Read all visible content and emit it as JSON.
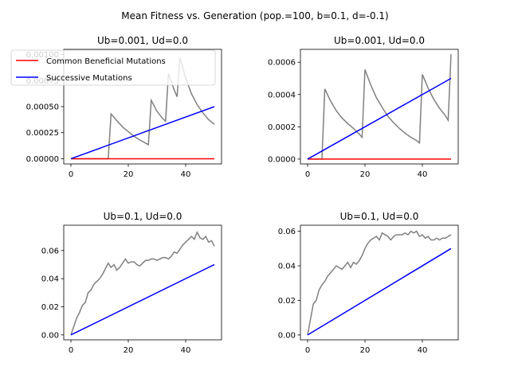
{
  "figure": {
    "suptitle": "Mean Fitness vs. Generation (pop.=100, b=0.1, d=-0.1)"
  },
  "chart_data": [
    {
      "type": "line",
      "title": "Ub=0.001, Ud=0.0",
      "xlim": [
        0,
        50
      ],
      "ylim": [
        -5e-05,
        0.00105
      ],
      "xticks": [
        0,
        20,
        40
      ],
      "xtick_labels": [
        "0",
        "20",
        "40"
      ],
      "yticks": [
        0,
        0.00025,
        0.0005,
        0.00075,
        0.001
      ],
      "ytick_labels": [
        "0.00000",
        "0.00025",
        "0.00050",
        "0.00075",
        "0.00100"
      ],
      "legend": {
        "placement": "upper left",
        "entries": [
          {
            "label": "Common Beneficial Mutations",
            "color": "#ff0000"
          },
          {
            "label": "Successive Mutations",
            "color": "#0000ff"
          }
        ]
      },
      "series": [
        {
          "name": "Common Beneficial Mutations",
          "color": "#ff0000",
          "x": [
            0,
            50
          ],
          "y": [
            0,
            0
          ]
        },
        {
          "name": "Successive Mutations",
          "color": "#0000ff",
          "x": [
            0,
            50
          ],
          "y": [
            0,
            0.0005
          ]
        },
        {
          "color": "#808080",
          "x": [
            0,
            13,
            14,
            16,
            18,
            20,
            22,
            24,
            26,
            27,
            28,
            30,
            32,
            33,
            34,
            36,
            37,
            38,
            40,
            42,
            44,
            46,
            48,
            50
          ],
          "y": [
            0,
            0,
            0.00043,
            0.000365,
            0.000305,
            0.00026,
            0.000215,
            0.00018,
            0.00015,
            0.000135,
            0.00056,
            0.000455,
            0.000385,
            0.00036,
            0.00082,
            0.00066,
            0.000595,
            0.00097,
            0.000775,
            0.000625,
            0.00052,
            0.00044,
            0.000375,
            0.00033
          ]
        }
      ]
    },
    {
      "type": "line",
      "title": "Ub=0.001, Ud=0.0",
      "xlim": [
        0,
        50
      ],
      "ylim": [
        -3e-05,
        0.00068
      ],
      "xticks": [
        0,
        20,
        40
      ],
      "xtick_labels": [
        "0",
        "20",
        "40"
      ],
      "yticks": [
        0,
        0.0002,
        0.0004,
        0.0006
      ],
      "ytick_labels": [
        "0.0000",
        "0.0002",
        "0.0004",
        "0.0006"
      ],
      "series": [
        {
          "name": "Common Beneficial Mutations",
          "color": "#ff0000",
          "x": [
            0,
            50
          ],
          "y": [
            0,
            0
          ]
        },
        {
          "name": "Successive Mutations",
          "color": "#0000ff",
          "x": [
            0,
            50
          ],
          "y": [
            0,
            0.0005
          ]
        },
        {
          "color": "#808080",
          "x": [
            0,
            5,
            6,
            8,
            10,
            12,
            14,
            16,
            18,
            19,
            20,
            22,
            24,
            26,
            28,
            30,
            32,
            34,
            36,
            38,
            39,
            40,
            42,
            44,
            46,
            48,
            49,
            50
          ],
          "y": [
            0,
            0,
            0.000435,
            0.00036,
            0.0003,
            0.000255,
            0.00022,
            0.00019,
            0.000155,
            0.000135,
            0.000555,
            0.00046,
            0.00038,
            0.00032,
            0.000265,
            0.000225,
            0.00019,
            0.00016,
            0.000135,
            0.000115,
            0.0001,
            0.000525,
            0.00044,
            0.00037,
            0.000315,
            0.00027,
            0.00024,
            0.00065
          ]
        }
      ]
    },
    {
      "type": "line",
      "title": "Ub=0.1, Ud=0.0",
      "xlim": [
        0,
        50
      ],
      "ylim": [
        -0.0035,
        0.078
      ],
      "xticks": [
        0,
        20,
        40
      ],
      "xtick_labels": [
        "0",
        "20",
        "40"
      ],
      "yticks": [
        0,
        0.02,
        0.04,
        0.06
      ],
      "ytick_labels": [
        "0.00",
        "0.02",
        "0.04",
        "0.06"
      ],
      "series": [
        {
          "name": "Successive Mutations",
          "color": "#0000ff",
          "x": [
            0,
            50
          ],
          "y": [
            0,
            0.05
          ]
        },
        {
          "color": "#808080",
          "x": [
            0,
            1,
            2,
            3,
            4,
            5,
            6,
            7,
            8,
            9,
            10,
            11,
            12,
            13,
            14,
            15,
            16,
            17,
            18,
            19,
            20,
            21,
            22,
            23,
            24,
            25,
            26,
            27,
            28,
            29,
            30,
            31,
            32,
            33,
            34,
            35,
            36,
            37,
            38,
            39,
            40,
            41,
            42,
            43,
            44,
            45,
            46,
            47,
            48,
            49,
            50
          ],
          "y": [
            0,
            0.006,
            0.012,
            0.016,
            0.021,
            0.023,
            0.03,
            0.032,
            0.036,
            0.038,
            0.04,
            0.043,
            0.047,
            0.051,
            0.048,
            0.05,
            0.046,
            0.048,
            0.051,
            0.054,
            0.051,
            0.052,
            0.052,
            0.05,
            0.049,
            0.051,
            0.053,
            0.053,
            0.054,
            0.054,
            0.053,
            0.054,
            0.055,
            0.055,
            0.054,
            0.056,
            0.059,
            0.058,
            0.061,
            0.064,
            0.066,
            0.068,
            0.07,
            0.068,
            0.073,
            0.069,
            0.068,
            0.07,
            0.066,
            0.067,
            0.063
          ]
        }
      ]
    },
    {
      "type": "line",
      "title": "Ub=0.1, Ud=0.0",
      "xlim": [
        0,
        50
      ],
      "ylim": [
        -0.0028,
        0.0635
      ],
      "xticks": [
        0,
        20,
        40
      ],
      "xtick_labels": [
        "0",
        "20",
        "40"
      ],
      "yticks": [
        0,
        0.02,
        0.04,
        0.06
      ],
      "ytick_labels": [
        "0.00",
        "0.02",
        "0.04",
        "0.06"
      ],
      "series": [
        {
          "name": "Successive Mutations",
          "color": "#0000ff",
          "x": [
            0,
            50
          ],
          "y": [
            0,
            0.05
          ]
        },
        {
          "color": "#808080",
          "x": [
            0,
            1,
            2,
            3,
            4,
            5,
            6,
            7,
            8,
            9,
            10,
            11,
            12,
            13,
            14,
            15,
            16,
            17,
            18,
            19,
            20,
            21,
            22,
            23,
            24,
            25,
            26,
            27,
            28,
            29,
            30,
            31,
            32,
            33,
            34,
            35,
            36,
            37,
            38,
            39,
            40,
            41,
            42,
            43,
            44,
            45,
            46,
            47,
            48,
            49,
            50
          ],
          "y": [
            0,
            0.009,
            0.018,
            0.02,
            0.026,
            0.029,
            0.031,
            0.034,
            0.036,
            0.038,
            0.04,
            0.039,
            0.038,
            0.04,
            0.042,
            0.039,
            0.042,
            0.041,
            0.043,
            0.046,
            0.05,
            0.053,
            0.055,
            0.056,
            0.057,
            0.055,
            0.059,
            0.058,
            0.057,
            0.055,
            0.057,
            0.058,
            0.058,
            0.058,
            0.059,
            0.058,
            0.06,
            0.059,
            0.06,
            0.057,
            0.058,
            0.056,
            0.057,
            0.055,
            0.055,
            0.056,
            0.055,
            0.056,
            0.056,
            0.057,
            0.058
          ]
        }
      ]
    }
  ]
}
